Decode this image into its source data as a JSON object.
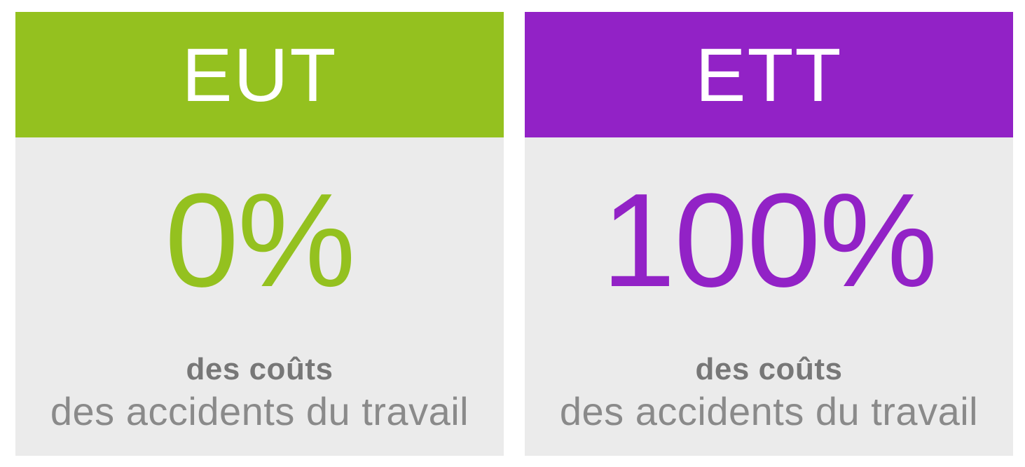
{
  "chart_data": {
    "type": "table",
    "title": "",
    "categories": [
      "EUT",
      "ETT"
    ],
    "values": [
      0,
      100
    ],
    "unit": "%",
    "value_labels": [
      "0%",
      "100%"
    ],
    "row_caption_bold": "des coûts",
    "row_caption": "des accidents du travail",
    "legend_position": "none",
    "grid": false
  },
  "cards": [
    {
      "title": "EUT",
      "accent": "#94C11F",
      "percent": "0%",
      "caption_bold": "des coûts",
      "caption": "des accidents du travail"
    },
    {
      "title": "ETT",
      "accent": "#9222C6",
      "percent": "100%",
      "caption_bold": "des coûts",
      "caption": "des accidents du travail"
    }
  ],
  "colors": {
    "page_bg": "#FFFFFF",
    "card_body_bg": "#EBEBEB",
    "header_text": "#FFFFFF",
    "caption_bold_text": "#777777",
    "caption_text": "#8A8A8A",
    "eut_accent": "#94C11F",
    "ett_accent": "#9222C6"
  }
}
